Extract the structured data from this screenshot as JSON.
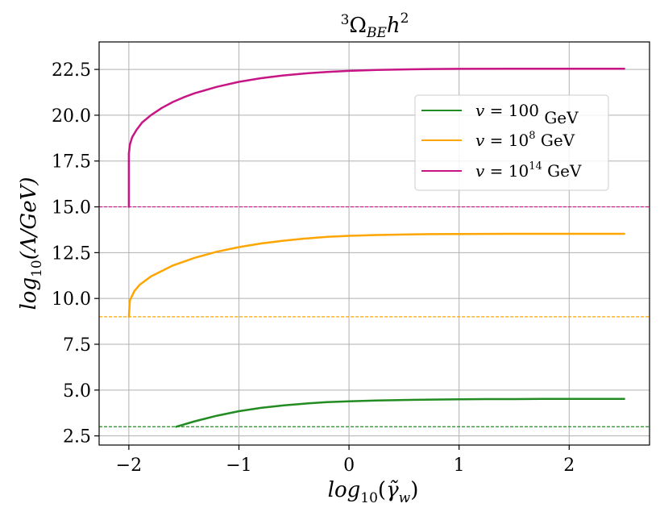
{
  "chart_data": {
    "type": "line",
    "title": "³Ω_BE h²",
    "title_parts": {
      "sup1": "3",
      "omega": "Ω",
      "sub": "BE",
      "h": "h",
      "sup2": "2"
    },
    "xlabel": "log₁₀(γ̃_w)",
    "xlabel_parts": {
      "pre": "log",
      "sub1": "10",
      "mid": "(",
      "var": "γ̃",
      "sub2": "w",
      "post": ")"
    },
    "ylabel": "log₁₀(Λ/GeV)",
    "ylabel_parts": {
      "pre": "log",
      "sub": "10",
      "post": "(Λ/GeV)"
    },
    "xlim": [
      -2.27,
      2.73
    ],
    "ylim": [
      2.0,
      24.0
    ],
    "xticks": [
      -2,
      -1,
      0,
      1,
      2
    ],
    "xtick_labels": [
      "−2",
      "−1",
      "0",
      "1",
      "2"
    ],
    "yticks": [
      2.5,
      5.0,
      7.5,
      10.0,
      12.5,
      15.0,
      17.5,
      20.0,
      22.5
    ],
    "ytick_labels": [
      "2.5",
      "5.0",
      "7.5",
      "10.0",
      "12.5",
      "15.0",
      "17.5",
      "20.0",
      "22.5"
    ],
    "grid": true,
    "legend_position": "upper-right",
    "series": [
      {
        "name": "v = 100 GeV",
        "legend_parts": {
          "lhs": "v = ",
          "base": "100",
          "exp": "",
          "unit": " GeV"
        },
        "color": "#228B22",
        "x": [
          -1.57,
          -1.4,
          -1.2,
          -1.0,
          -0.8,
          -0.6,
          -0.4,
          -0.2,
          0.0,
          0.25,
          0.5,
          0.75,
          1.0,
          1.25,
          1.5,
          1.75,
          2.0,
          2.25,
          2.5
        ],
        "y": [
          3.0,
          3.3,
          3.6,
          3.85,
          4.03,
          4.16,
          4.26,
          4.34,
          4.39,
          4.43,
          4.46,
          4.48,
          4.5,
          4.51,
          4.51,
          4.52,
          4.52,
          4.52,
          4.52
        ],
        "baseline": 3.0
      },
      {
        "name": "v = 10^8 GeV",
        "legend_parts": {
          "lhs": "v = ",
          "base": "10",
          "exp": "8",
          "unit": " GeV"
        },
        "color": "#FFA500",
        "x": [
          -2.0,
          -1.99,
          -1.95,
          -1.9,
          -1.8,
          -1.6,
          -1.4,
          -1.2,
          -1.0,
          -0.8,
          -0.6,
          -0.4,
          -0.2,
          0.0,
          0.25,
          0.5,
          0.75,
          1.0,
          1.5,
          2.0,
          2.5
        ],
        "y": [
          9.0,
          9.9,
          10.4,
          10.75,
          11.2,
          11.8,
          12.22,
          12.55,
          12.8,
          13.0,
          13.15,
          13.27,
          13.36,
          13.42,
          13.46,
          13.49,
          13.51,
          13.52,
          13.53,
          13.53,
          13.53
        ],
        "baseline": 9.0
      },
      {
        "name": "v = 10^14 GeV",
        "legend_parts": {
          "lhs": "v = ",
          "base": "10",
          "exp": "14",
          "unit": " GeV"
        },
        "color": "#C71585",
        "x": [
          -2.0,
          -2.0,
          -1.99,
          -1.97,
          -1.93,
          -1.88,
          -1.8,
          -1.7,
          -1.6,
          -1.5,
          -1.4,
          -1.2,
          -1.0,
          -0.8,
          -0.6,
          -0.4,
          -0.2,
          0.0,
          0.25,
          0.5,
          0.75,
          1.0,
          1.5,
          2.0,
          2.5
        ],
        "y": [
          15.0,
          17.9,
          18.4,
          18.8,
          19.2,
          19.6,
          20.0,
          20.4,
          20.72,
          20.98,
          21.2,
          21.55,
          21.82,
          22.02,
          22.17,
          22.28,
          22.36,
          22.42,
          22.47,
          22.5,
          22.52,
          22.53,
          22.54,
          22.54,
          22.54
        ],
        "baseline": 15.0
      }
    ]
  }
}
